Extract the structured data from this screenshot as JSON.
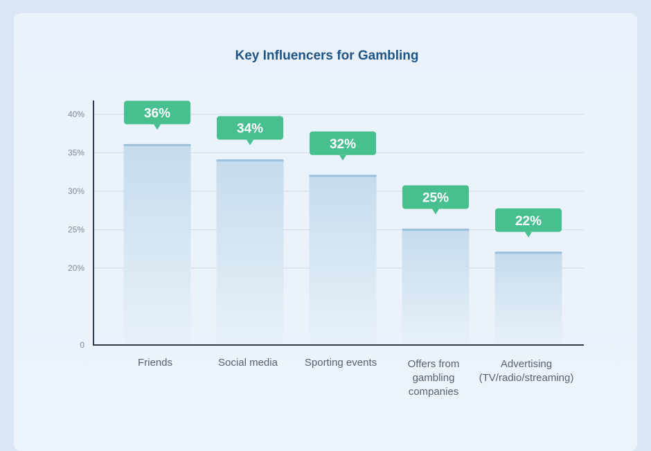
{
  "chart_data": {
    "type": "bar",
    "title": "Key Influencers for Gambling",
    "categories": [
      [
        "Friends"
      ],
      [
        "Social media"
      ],
      [
        "Sporting events"
      ],
      [
        "Offers from",
        "gambling",
        "companies"
      ],
      [
        "Advertising",
        "(TV/radio/streaming)"
      ]
    ],
    "values": [
      36,
      34,
      32,
      25,
      22
    ],
    "value_labels": [
      "36%",
      "34%",
      "32%",
      "25%",
      "22%"
    ],
    "yticks": [
      {
        "value": 0,
        "label": "0"
      },
      {
        "value": 20,
        "label": "20%"
      },
      {
        "value": 25,
        "label": "25%"
      },
      {
        "value": 30,
        "label": "30%"
      },
      {
        "value": 35,
        "label": "35%"
      },
      {
        "value": 40,
        "label": "40%"
      }
    ],
    "ylim": [
      0,
      40
    ],
    "grid": true,
    "colors": {
      "bar_top": "#c5dbec",
      "bar_bottom": "#e8f1fa",
      "bar_cap": "#9bc0dc",
      "label_bg": "#48bf8e",
      "axis": "#2d3a4a",
      "grid": "#d0dbe8"
    }
  }
}
